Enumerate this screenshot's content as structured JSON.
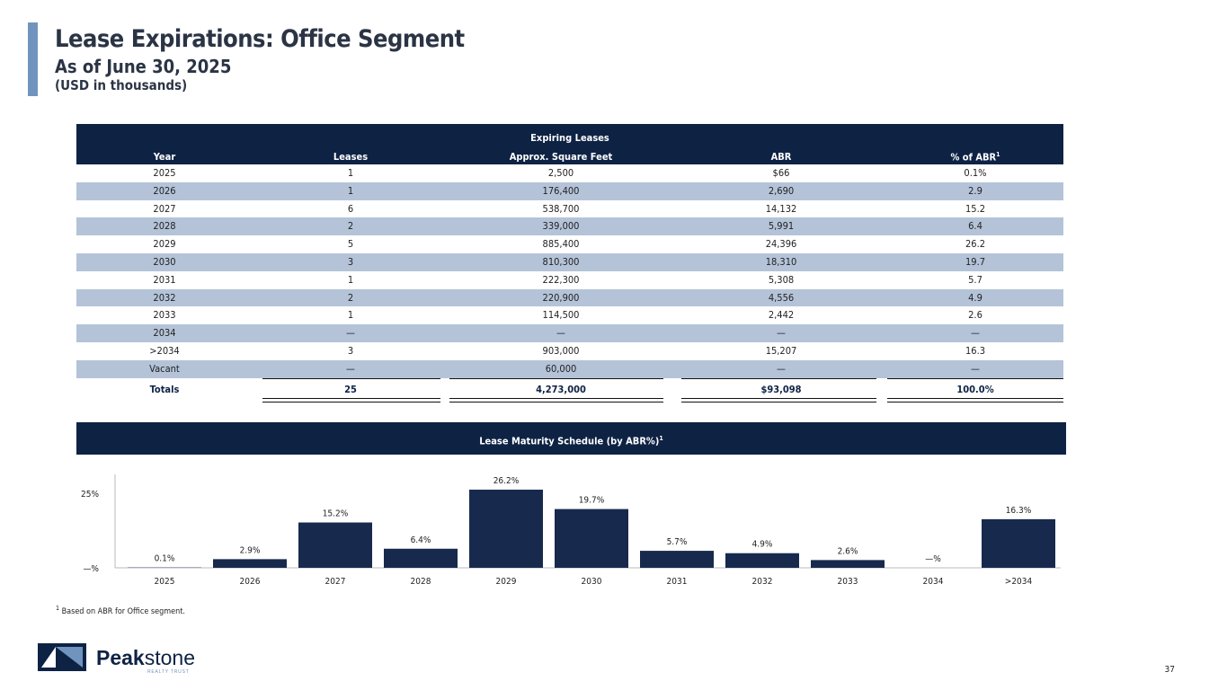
{
  "header": {
    "title": "Lease Expirations: Office Segment",
    "subtitle": "As of June 30, 2025",
    "units": "(USD in thousands)"
  },
  "table": {
    "group_label": "Expiring Leases",
    "columns": [
      "Year",
      "Leases",
      "Approx. Square Feet",
      "ABR",
      "% of ABR"
    ],
    "footnote_marker": "1",
    "rows": [
      [
        "2025",
        "1",
        "2,500",
        "$66",
        "0.1%"
      ],
      [
        "2026",
        "1",
        "176,400",
        "2,690",
        "2.9"
      ],
      [
        "2027",
        "6",
        "538,700",
        "14,132",
        "15.2"
      ],
      [
        "2028",
        "2",
        "339,000",
        "5,991",
        "6.4"
      ],
      [
        "2029",
        "5",
        "885,400",
        "24,396",
        "26.2"
      ],
      [
        "2030",
        "3",
        "810,300",
        "18,310",
        "19.7"
      ],
      [
        "2031",
        "1",
        "222,300",
        "5,308",
        "5.7"
      ],
      [
        "2032",
        "2",
        "220,900",
        "4,556",
        "4.9"
      ],
      [
        "2033",
        "1",
        "114,500",
        "2,442",
        "2.6"
      ],
      [
        "2034",
        "—",
        "—",
        "—",
        "—"
      ],
      [
        ">2034",
        "3",
        "903,000",
        "15,207",
        "16.3"
      ],
      [
        "Vacant",
        "—",
        "60,000",
        "—",
        "—"
      ]
    ],
    "totals": [
      "Totals",
      "25",
      "4,273,000",
      "$93,098",
      "100.0%"
    ]
  },
  "chart_title": "Lease Maturity Schedule (by ABR%)",
  "chart_title_marker": "1",
  "chart_data": {
    "type": "bar",
    "categories": [
      "2025",
      "2026",
      "2027",
      "2028",
      "2029",
      "2030",
      "2031",
      "2032",
      "2033",
      "2034",
      ">2034"
    ],
    "values": [
      0.1,
      2.9,
      15.2,
      6.4,
      26.2,
      19.7,
      5.7,
      4.9,
      2.6,
      0,
      16.3
    ],
    "data_labels": [
      "0.1%",
      "2.9%",
      "15.2%",
      "6.4%",
      "26.2%",
      "19.7%",
      "5.7%",
      "4.9%",
      "2.6%",
      "—%",
      "16.3%"
    ],
    "yticks": [
      "—%",
      "25%"
    ],
    "ytick_values": [
      0,
      25
    ],
    "ylim": [
      0,
      30
    ],
    "bar_color": "#172a4d",
    "grid": false
  },
  "footnote": {
    "marker": "1",
    "text": "Based on ABR for Office segment."
  },
  "logo": {
    "name": "Peakstone",
    "tagline": "REALTY TRUST"
  },
  "page_number": "37",
  "colors": {
    "navy": "#0e2244",
    "alt_row": "#b4c3d8",
    "accent": "#7094bd"
  }
}
